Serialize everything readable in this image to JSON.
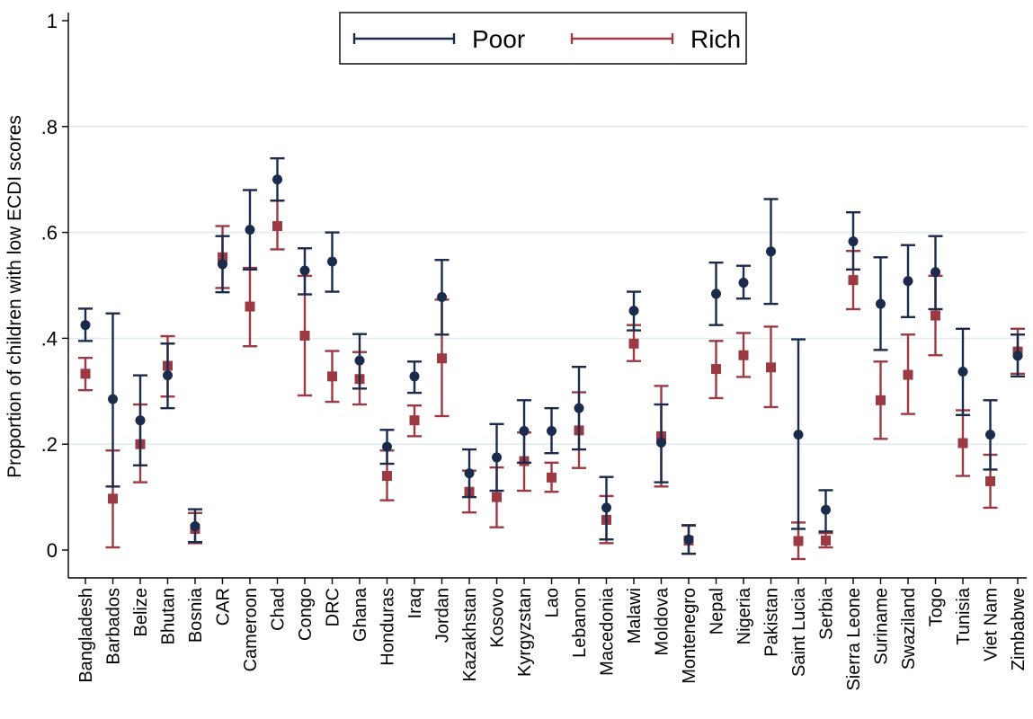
{
  "chart_data": {
    "type": "errorbar",
    "ylabel": "Proportion of children with low ECDI scores",
    "xlabel": "",
    "ylim": [
      -0.05,
      1.03
    ],
    "yticks": [
      {
        "value": 0,
        "label": "0"
      },
      {
        "value": 0.2,
        "label": ".2"
      },
      {
        "value": 0.4,
        "label": ".4"
      },
      {
        "value": 0.6,
        "label": ".6"
      },
      {
        "value": 0.8,
        "label": ".8"
      },
      {
        "value": 1,
        "label": "1"
      }
    ],
    "grid": true,
    "legend_position": "top-center",
    "categories": [
      "Bangladesh",
      "Barbados",
      "Belize",
      "Bhutan",
      "Bosnia",
      "CAR",
      "Cameroon",
      "Chad",
      "Congo",
      "DRC",
      "Ghana",
      "Honduras",
      "Iraq",
      "Jordan",
      "Kazakhstan",
      "Kosovo",
      "Kyrgyzstan",
      "Lao",
      "Lebanon",
      "Macedonia",
      "Malawi",
      "Moldova",
      "Montenegro",
      "Nepal",
      "Nigeria",
      "Pakistan",
      "Saint Lucia",
      "Serbia",
      "Sierra Leone",
      "Suriname",
      "Swaziland",
      "Togo",
      "Tunisia",
      "Viet Nam",
      "Zimbabwe"
    ],
    "series": [
      {
        "name": "Poor",
        "color": "#1a2b4c",
        "marker": "circle",
        "values": [
          0.425,
          0.285,
          0.245,
          0.33,
          0.045,
          0.54,
          0.605,
          0.7,
          0.528,
          0.545,
          0.358,
          0.195,
          0.328,
          0.478,
          0.145,
          0.175,
          0.225,
          0.225,
          0.268,
          0.08,
          0.452,
          0.203,
          0.02,
          0.484,
          0.505,
          0.564,
          0.218,
          0.076,
          0.583,
          0.465,
          0.508,
          0.525,
          0.337,
          0.218,
          0.367
        ],
        "lower": [
          0.395,
          0.12,
          0.16,
          0.268,
          0.015,
          0.487,
          0.53,
          0.66,
          0.483,
          0.488,
          0.305,
          0.163,
          0.297,
          0.407,
          0.1,
          0.112,
          0.165,
          0.183,
          0.19,
          0.02,
          0.415,
          0.128,
          -0.007,
          0.425,
          0.475,
          0.465,
          0.04,
          0.035,
          0.53,
          0.378,
          0.44,
          0.455,
          0.255,
          0.152,
          0.328
        ],
        "upper": [
          0.456,
          0.447,
          0.33,
          0.39,
          0.077,
          0.593,
          0.68,
          0.74,
          0.57,
          0.6,
          0.408,
          0.227,
          0.356,
          0.548,
          0.19,
          0.238,
          0.283,
          0.268,
          0.346,
          0.138,
          0.488,
          0.275,
          0.047,
          0.543,
          0.537,
          0.663,
          0.398,
          0.113,
          0.638,
          0.553,
          0.576,
          0.593,
          0.418,
          0.283,
          0.407
        ]
      },
      {
        "name": "Rich",
        "color": "#9b3a43",
        "marker": "square",
        "values": [
          0.333,
          0.097,
          0.2,
          0.348,
          0.04,
          0.553,
          0.46,
          0.612,
          0.405,
          0.328,
          0.323,
          0.14,
          0.245,
          0.362,
          0.11,
          0.1,
          0.168,
          0.137,
          0.226,
          0.057,
          0.39,
          0.215,
          0.018,
          0.342,
          0.368,
          0.345,
          0.017,
          0.018,
          0.51,
          0.283,
          0.331,
          0.443,
          0.202,
          0.13,
          0.375
        ],
        "lower": [
          0.302,
          0.005,
          0.128,
          0.29,
          0.013,
          0.495,
          0.385,
          0.568,
          0.292,
          0.28,
          0.275,
          0.094,
          0.215,
          0.253,
          0.071,
          0.043,
          0.112,
          0.11,
          0.155,
          0.013,
          0.357,
          0.12,
          -0.007,
          0.287,
          0.327,
          0.27,
          -0.017,
          0.005,
          0.455,
          0.21,
          0.257,
          0.368,
          0.14,
          0.08,
          0.333
        ],
        "upper": [
          0.363,
          0.188,
          0.275,
          0.404,
          0.07,
          0.612,
          0.533,
          0.66,
          0.518,
          0.376,
          0.374,
          0.188,
          0.273,
          0.473,
          0.15,
          0.156,
          0.222,
          0.165,
          0.298,
          0.102,
          0.425,
          0.31,
          0.046,
          0.395,
          0.41,
          0.422,
          0.052,
          0.032,
          0.565,
          0.356,
          0.407,
          0.518,
          0.264,
          0.18,
          0.418
        ]
      }
    ]
  }
}
